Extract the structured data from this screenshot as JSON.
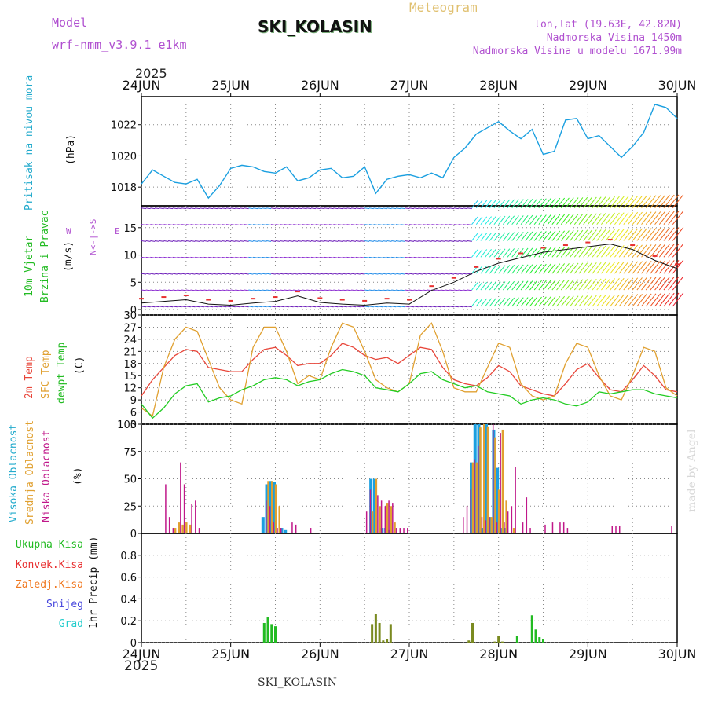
{
  "header": {
    "model_label": "Model",
    "model_name": "wrf-nmm_v3.9.1  e1km",
    "meteogram_label": "Meteogram",
    "station_title": "SKI_KOLASIN",
    "coords": "lon,lat (19.63E, 42.82N)",
    "elevation": "Nadmorska Visina 1450m",
    "model_elevation": "Nadmorska Visina u modelu 1671.99m",
    "footer_station": "SKI_KOLASIN",
    "credit": "made by Angel"
  },
  "time_axis": {
    "year": "2025",
    "ticks": [
      "24JUN",
      "25JUN",
      "26JUN",
      "27JUN",
      "28JUN",
      "29JUN",
      "30JUN"
    ]
  },
  "panel_labels": {
    "pressure": [
      "Pritisak na nivou mora"
    ],
    "pressure_unit": "(hPa)",
    "wind": [
      "10m Vjetar",
      "Brzina i Pravac"
    ],
    "wind_unit": "(m/s)",
    "wind_compass_ns": "N<-|->S",
    "wind_compass_w": "W",
    "wind_compass_e": "E",
    "temp": [
      "2m Temp",
      "SFC Temp",
      "dewpt Temp"
    ],
    "temp_unit": "(C)",
    "cloud": [
      "Visoka Oblacnost",
      "Srednja Oblacnost",
      "Niska Oblacnost"
    ],
    "cloud_unit": "(%)",
    "precip_legend": [
      "Ukupna Kisa",
      "Konvek.Kisa",
      "Zaledj.Kisa",
      "Snijeg",
      "Grad"
    ],
    "precip_unit": "1hr Precip (mm)"
  },
  "colors": {
    "pressure": "#1a9fe0",
    "temp_2m": "#e8463a",
    "temp_sfc": "#e0a030",
    "temp_dew": "#22cc22",
    "cloud_high": "#1a9fe0",
    "cloud_mid": "#e0a030",
    "cloud_low": "#c0188a",
    "rain_total": "#22bb22",
    "rain_conv": "#e83030",
    "rain_frz": "#f07820",
    "snow": "#4444dd",
    "hail": "#22cccc",
    "label_purple": "#b050d0",
    "label_teal": "#22aacc"
  },
  "chart_data": [
    {
      "type": "line",
      "panel": "pressure",
      "ylabel": "(hPa)",
      "ylim": [
        1016.8,
        1023.8
      ],
      "yticks": [
        1018,
        1020,
        1022
      ],
      "x_unit": "hours since 24JUN 00",
      "series": [
        {
          "values_x": [
            0,
            3,
            6,
            9,
            12,
            15,
            18,
            21,
            24,
            27,
            30,
            33,
            36,
            39,
            42,
            45,
            48,
            51,
            54,
            57,
            60,
            63,
            66,
            69,
            72,
            75,
            78,
            81,
            84,
            87,
            90,
            93,
            96,
            99,
            102,
            105,
            108,
            111,
            114,
            117,
            120,
            123,
            126,
            129,
            132,
            135,
            138,
            141,
            144
          ],
          "values": [
            1018.2,
            1019.1,
            1018.7,
            1018.3,
            1018.2,
            1018.5,
            1017.3,
            1018.1,
            1019.2,
            1019.4,
            1019.3,
            1019.0,
            1018.9,
            1019.3,
            1018.4,
            1018.6,
            1019.1,
            1019.2,
            1018.6,
            1018.7,
            1019.3,
            1017.6,
            1018.5,
            1018.7,
            1018.8,
            1018.6,
            1018.9,
            1018.6,
            1019.9,
            1020.5,
            1021.4,
            1021.8,
            1022.2,
            1021.6,
            1021.1,
            1021.7,
            1020.1,
            1020.3,
            1022.3,
            1022.4,
            1021.1,
            1021.3,
            1020.6,
            1019.9,
            1020.6,
            1021.5,
            1023.3,
            1023.1,
            1022.4
          ]
        }
      ]
    },
    {
      "type": "line",
      "panel": "wind",
      "ylabel": "(m/s)",
      "ylim": [
        -1,
        19
      ],
      "yticks": [
        0,
        5,
        10,
        15
      ],
      "series": [
        {
          "name": "Brzina",
          "values_x": [
            0,
            6,
            12,
            18,
            24,
            30,
            36,
            42,
            48,
            54,
            60,
            66,
            72,
            78,
            84,
            90,
            96,
            102,
            108,
            114,
            120,
            126,
            132,
            138,
            144
          ],
          "values": [
            1.2,
            1.5,
            1.8,
            1.0,
            0.8,
            1.2,
            1.5,
            2.5,
            1.3,
            1.0,
            0.8,
            1.2,
            1.0,
            3.5,
            5.0,
            7.0,
            8.5,
            9.5,
            10.5,
            11.0,
            11.5,
            12.0,
            11.0,
            9.0,
            7.5
          ]
        }
      ]
    },
    {
      "type": "line",
      "panel": "temperature",
      "ylabel": "(C)",
      "ylim": [
        3,
        30
      ],
      "yticks": [
        3,
        6,
        9,
        12,
        15,
        18,
        21,
        24,
        27,
        30
      ],
      "series": [
        {
          "name": "2m Temp",
          "values_x": [
            0,
            3,
            6,
            9,
            12,
            15,
            18,
            21,
            24,
            27,
            30,
            33,
            36,
            39,
            42,
            45,
            48,
            51,
            54,
            57,
            60,
            63,
            66,
            69,
            72,
            75,
            78,
            81,
            84,
            87,
            90,
            93,
            96,
            99,
            102,
            105,
            108,
            111,
            114,
            117,
            120,
            123,
            126,
            129,
            132,
            135,
            138,
            141,
            144
          ],
          "values": [
            10,
            14,
            17,
            20,
            21.5,
            21,
            17,
            16.5,
            16,
            16,
            19,
            21.5,
            22,
            20,
            17.5,
            18,
            18,
            20,
            23,
            22,
            20,
            19,
            19.5,
            18,
            20,
            22,
            21.5,
            17,
            14,
            13,
            12.5,
            14.5,
            17.5,
            16,
            12.5,
            11.5,
            10.5,
            10,
            13,
            16.5,
            18,
            14.5,
            11.5,
            11,
            14,
            17.5,
            15,
            11.5,
            11
          ]
        },
        {
          "name": "SFC Temp",
          "values_x": [
            0,
            3,
            6,
            9,
            12,
            15,
            18,
            21,
            24,
            27,
            30,
            33,
            36,
            39,
            42,
            45,
            48,
            51,
            54,
            57,
            60,
            63,
            66,
            69,
            72,
            75,
            78,
            81,
            84,
            87,
            90,
            93,
            96,
            99,
            102,
            105,
            108,
            111,
            114,
            117,
            120,
            123,
            126,
            129,
            132,
            135,
            138,
            141,
            144
          ],
          "values": [
            7,
            5,
            17,
            24,
            27,
            26,
            19,
            12,
            9,
            8,
            22,
            27,
            27,
            21,
            13,
            15,
            14,
            22,
            28,
            27,
            21,
            14,
            12,
            11,
            13,
            25,
            28,
            21,
            12,
            11,
            11,
            17,
            23,
            22,
            13,
            10,
            9,
            10,
            18,
            23,
            22,
            15,
            10,
            9,
            15,
            22,
            21,
            12,
            10
          ]
        },
        {
          "name": "dewpt Temp",
          "values_x": [
            0,
            3,
            6,
            9,
            12,
            15,
            18,
            21,
            24,
            27,
            30,
            33,
            36,
            39,
            42,
            45,
            48,
            51,
            54,
            57,
            60,
            63,
            66,
            69,
            72,
            75,
            78,
            81,
            84,
            87,
            90,
            93,
            96,
            99,
            102,
            105,
            108,
            111,
            114,
            117,
            120,
            123,
            126,
            129,
            132,
            135,
            138,
            141,
            144
          ],
          "values": [
            8,
            4.5,
            7,
            10.5,
            12.5,
            13,
            8.5,
            9.5,
            10,
            11.5,
            12.5,
            14,
            14.5,
            14,
            12.5,
            13.5,
            14,
            15.5,
            16.5,
            16,
            15,
            12,
            11.5,
            11,
            13,
            15.5,
            16,
            14,
            13,
            12,
            12.5,
            11,
            10.5,
            10,
            8,
            9,
            9.5,
            9,
            8,
            7.5,
            8.5,
            11,
            10.5,
            11,
            11.5,
            11.5,
            10.5,
            10,
            9.5
          ]
        }
      ]
    },
    {
      "type": "bar",
      "panel": "cloud",
      "ylabel": "(%)",
      "ylim": [
        0,
        100
      ],
      "yticks": [
        0,
        25,
        50,
        75,
        100
      ],
      "series": [
        {
          "name": "Visoka Oblacnost",
          "values_x": [
            33,
            34,
            35,
            36,
            38,
            39,
            62,
            63,
            65,
            66,
            67,
            89,
            90,
            91,
            92,
            93,
            94,
            95,
            96,
            97,
            98
          ],
          "values": [
            15,
            45,
            48,
            47,
            5,
            3,
            50,
            50,
            5,
            5,
            3,
            65,
            100,
            100,
            5,
            100,
            15,
            95,
            60,
            5,
            5
          ]
        },
        {
          "name": "Srednja Oblacnost",
          "values_x": [
            9,
            10,
            11,
            12,
            13,
            34,
            35,
            36,
            37,
            62,
            63,
            64,
            66,
            67,
            68,
            89,
            90,
            91,
            92,
            93,
            94,
            95,
            96,
            97,
            98,
            100
          ],
          "values": [
            5,
            10,
            8,
            10,
            8,
            48,
            48,
            45,
            25,
            20,
            50,
            25,
            28,
            25,
            10,
            65,
            65,
            97,
            100,
            98,
            15,
            88,
            40,
            95,
            30,
            5
          ]
        },
        {
          "name": "Niska Oblacnost",
          "values_x": [
            6,
            7,
            8,
            10,
            11,
            13,
            14,
            15,
            33,
            34,
            35,
            36,
            37,
            40,
            41,
            45,
            60,
            61,
            63,
            64,
            65,
            66,
            67,
            68,
            69,
            70,
            71,
            86,
            87,
            88,
            89,
            90,
            91,
            92,
            93,
            94,
            95,
            96,
            97,
            98,
            99,
            100,
            102,
            103,
            104,
            108,
            110,
            112,
            113,
            114,
            126,
            127,
            128,
            142
          ],
          "values": [
            45,
            15,
            5,
            65,
            45,
            27,
            30,
            5,
            30,
            25,
            10,
            5,
            5,
            10,
            8,
            5,
            20,
            40,
            35,
            30,
            25,
            30,
            28,
            5,
            5,
            5,
            5,
            15,
            25,
            40,
            68,
            80,
            15,
            12,
            15,
            100,
            10,
            92,
            10,
            20,
            25,
            61,
            10,
            33,
            5,
            8,
            10,
            10,
            10,
            5,
            7,
            7,
            7,
            7
          ]
        }
      ]
    },
    {
      "type": "bar",
      "panel": "precip",
      "ylabel": "1hr Precip (mm)",
      "ylim": [
        0,
        1.0
      ],
      "yticks": [
        0,
        0.2,
        0.4,
        0.6,
        0.8
      ],
      "series": [
        {
          "name": "Ukupna Kisa",
          "values_x": [
            33,
            34,
            35,
            36,
            62,
            63,
            64,
            65,
            66,
            67,
            88,
            89,
            95,
            96,
            97,
            101,
            105,
            106,
            107,
            108
          ],
          "values": [
            0.18,
            0.23,
            0.17,
            0.15,
            0.17,
            0.26,
            0.18,
            0.02,
            0.03,
            0.17,
            0.02,
            0.18,
            0.01,
            0.06,
            0.01,
            0.06,
            0.25,
            0.12,
            0.05,
            0.03
          ]
        }
      ]
    }
  ]
}
